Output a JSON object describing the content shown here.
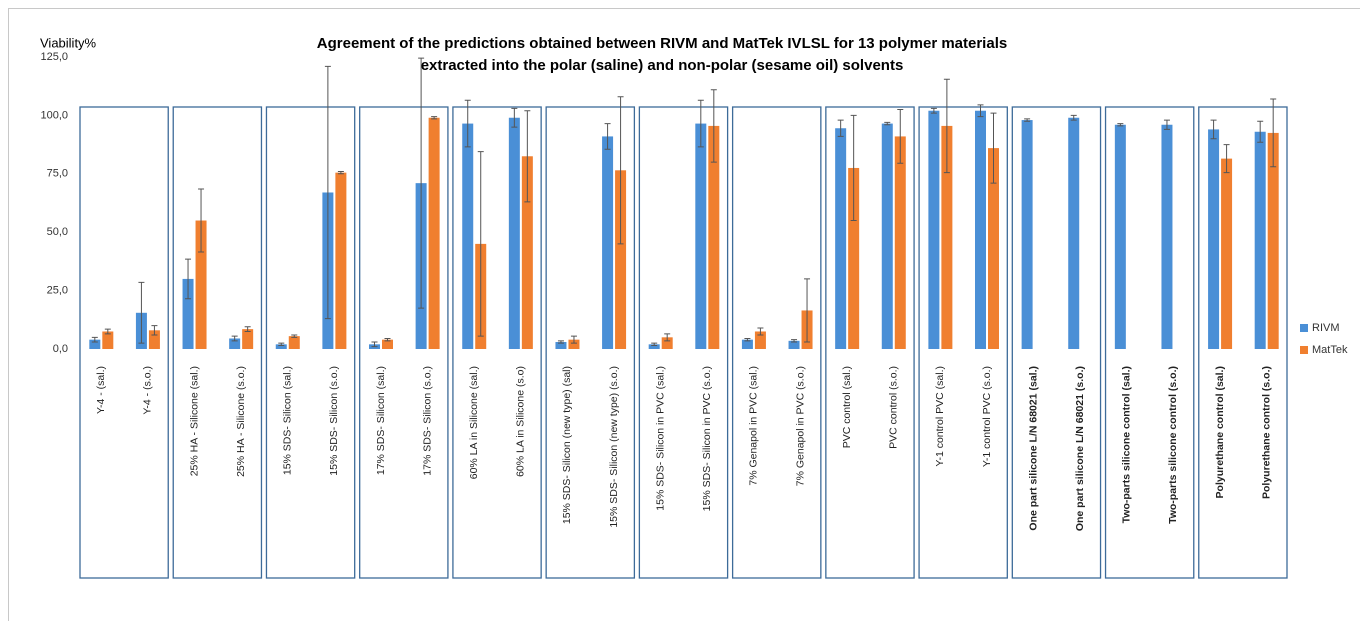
{
  "chart_data": {
    "type": "bar",
    "title": "Agreement of the predictions obtained between RIVM and MatTek IVLSL for 13 polymer materials",
    "subtitle": "extracted into the polar (saline) and non-polar (sesame oil) solvents",
    "y_label": "Viability%",
    "categories": [
      "Y-4 - (sal.)",
      "Y-4 - (s.o.)",
      "25% HA - Silicone (sal.)",
      "25% HA - Silicone (s.o.)",
      "15% SDS- Silicon (sal.)",
      "15% SDS- Silicon (s.o.)",
      "17% SDS- Silicon (sal.)",
      "17% SDS- Silicon (s.o.)",
      "60% LA in Silicone (sal.)",
      "60% LA in Silicone (s.o)",
      "15% SDS- Silicon (new type) (sal)",
      "15% SDS- Silicon (new type) (s.o.)",
      "15% SDS- Silicon in PVC (sal.)",
      "15% SDS- Silicon in PVC (s.o.)",
      "7% Genapol in PVC (sal.)",
      "7% Genapol in PVC (s.o.)",
      "PVC control (sal.)",
      "PVC control (s.o.)",
      "Y-1 control PVC (sal.)",
      "Y-1 control PVC (s.o.)",
      "One part silicone L/N 68021 (sal.)",
      "One part silicone L/N 68021 (s.o.)",
      "Two-parts silicone control  (sal.)",
      "Two-parts silicone control (s.o.)",
      "Polyurethane control (sal.)",
      "Polyurethane control (s.o.)"
    ],
    "series": [
      {
        "name": "RIVM",
        "color": "#4a8fd6",
        "values": [
          4,
          15.5,
          30,
          4.5,
          2,
          67,
          2,
          71,
          96.5,
          99,
          3,
          91,
          2,
          96.5,
          4,
          3.5,
          94.5,
          96.5,
          102,
          102,
          98,
          99,
          96,
          96,
          94,
          93
        ],
        "errors": [
          1,
          13,
          8.5,
          1,
          0.5,
          54,
          1,
          53.5,
          10,
          4,
          0.5,
          5.5,
          0.5,
          10,
          0.5,
          0.5,
          3.5,
          0.5,
          1,
          2.5,
          0.5,
          1,
          0.5,
          2,
          4,
          4.5
        ]
      },
      {
        "name": "MatTek",
        "color": "#f07f2f",
        "values": [
          7.5,
          8,
          55,
          8.5,
          5.5,
          75.5,
          4,
          99,
          45,
          82.5,
          4,
          76.5,
          5,
          95.5,
          7.5,
          16.5,
          77.5,
          91,
          95.5,
          86,
          null,
          null,
          null,
          null,
          81.5,
          92.5
        ],
        "errors": [
          1,
          2,
          13.5,
          1,
          0.5,
          0.5,
          0.5,
          0.5,
          39.5,
          19.5,
          1.5,
          31.5,
          1.5,
          15.5,
          1.5,
          13.5,
          22.5,
          11.5,
          20,
          15,
          null,
          null,
          null,
          null,
          6,
          14.5
        ]
      }
    ],
    "ylim": [
      0,
      125
    ],
    "yticks": [
      {
        "value": 0,
        "label": "0,0"
      },
      {
        "value": 25,
        "label": "25,0"
      },
      {
        "value": 50,
        "label": "50,0"
      },
      {
        "value": 75,
        "label": "75,0"
      },
      {
        "value": 100,
        "label": "100,0"
      },
      {
        "value": 125,
        "label": "125,0"
      }
    ],
    "legend": "right"
  }
}
